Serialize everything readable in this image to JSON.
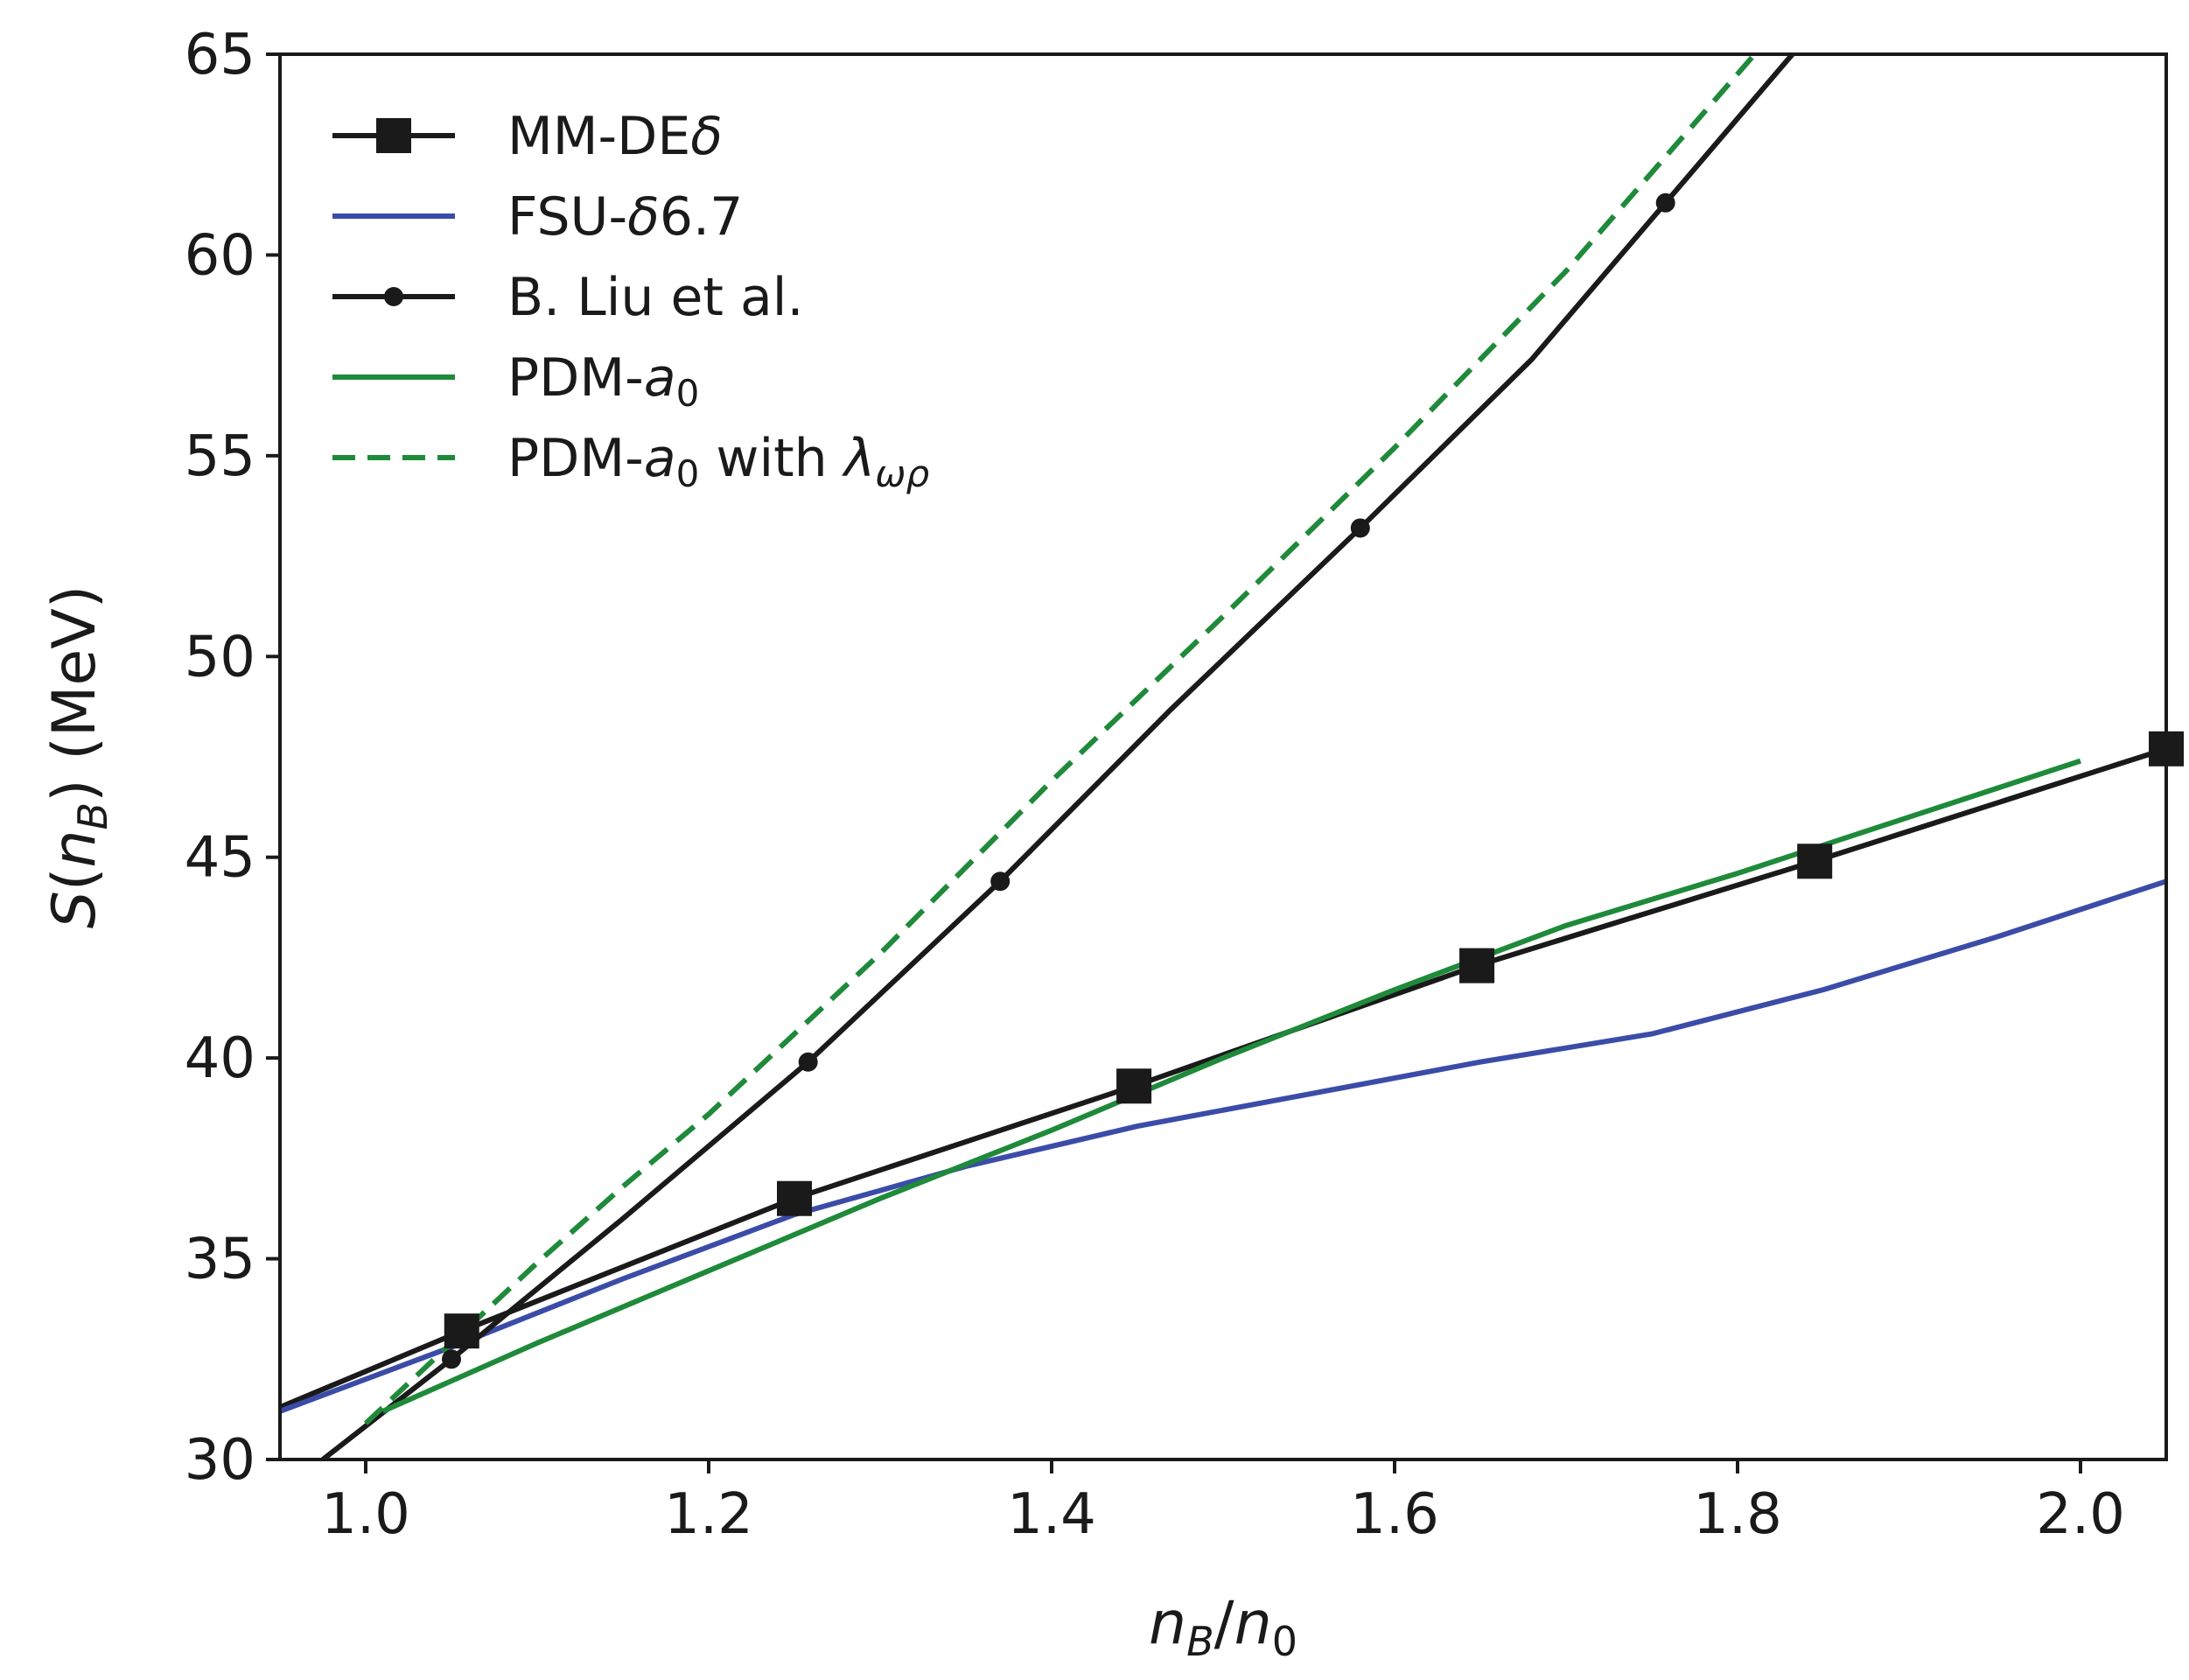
{
  "chart_data": {
    "type": "line",
    "title": "",
    "xlabel": "n_B/n_0",
    "ylabel": "S(n_B) (MeV)",
    "xlim": [
      0.95,
      2.05
    ],
    "ylim": [
      30,
      65
    ],
    "x_ticks": [
      1.0,
      1.2,
      1.4,
      1.6,
      1.8,
      2.0
    ],
    "x_tick_labels": [
      "1.0",
      "1.2",
      "1.4",
      "1.6",
      "1.8",
      "2.0"
    ],
    "y_ticks": [
      30,
      35,
      40,
      45,
      50,
      55,
      60,
      65
    ],
    "y_tick_labels": [
      "30",
      "35",
      "40",
      "45",
      "50",
      "55",
      "60",
      "65"
    ],
    "legend_position": "top-left",
    "series": [
      {
        "name": "MM-DEδ",
        "label_parts": [
          [
            "MM-DE",
            ""
          ],
          [
            "δ",
            "it"
          ]
        ],
        "color": "#1a1a1a",
        "style": "solid",
        "marker": "square",
        "x": [
          0.95,
          1.056,
          1.25,
          1.448,
          1.648,
          1.845,
          2.05
        ],
        "y": [
          31.3,
          33.2,
          36.5,
          39.3,
          42.3,
          44.9,
          47.7
        ],
        "marker_x": [
          1.056,
          1.25,
          1.448,
          1.648,
          1.845,
          2.05
        ],
        "marker_y": [
          33.2,
          36.5,
          39.3,
          42.3,
          44.9,
          47.7
        ]
      },
      {
        "name": "FSU-δ6.7",
        "label_parts": [
          [
            "FSU-",
            ""
          ],
          [
            "δ",
            "it"
          ],
          [
            "6.7",
            ""
          ]
        ],
        "color": "#3b4ca8",
        "style": "solid",
        "marker": "none",
        "x": [
          0.95,
          1.05,
          1.15,
          1.25,
          1.35,
          1.45,
          1.55,
          1.65,
          1.75,
          1.85,
          1.95,
          2.05
        ],
        "y": [
          31.2,
          32.8,
          34.5,
          36.1,
          37.3,
          38.3,
          39.1,
          39.9,
          40.6,
          41.7,
          43.0,
          44.4
        ]
      },
      {
        "name": "B. Liu et al.",
        "label_parts": [
          [
            "B. Liu et al.",
            ""
          ]
        ],
        "color": "#1a1a1a",
        "style": "solid",
        "marker": "dot",
        "x": [
          0.975,
          1.05,
          1.15,
          1.258,
          1.37,
          1.47,
          1.58,
          1.68,
          1.758,
          1.832
        ],
        "y": [
          30.0,
          32.5,
          36.0,
          39.9,
          44.4,
          48.7,
          53.2,
          57.4,
          61.3,
          65.0
        ],
        "marker_x": [
          1.05,
          1.258,
          1.37,
          1.58,
          1.758
        ],
        "marker_y": [
          32.5,
          39.9,
          44.4,
          53.2,
          61.3
        ]
      },
      {
        "name": "PDM-a0",
        "label_parts": [
          [
            "PDM-",
            ""
          ],
          [
            "a",
            "it"
          ],
          [
            "0",
            "sub"
          ]
        ],
        "color": "#1e8a3a",
        "style": "solid",
        "marker": "none",
        "x": [
          1.01,
          1.1,
          1.2,
          1.3,
          1.4,
          1.5,
          1.6,
          1.7,
          1.8,
          1.9,
          2.0
        ],
        "y": [
          31.2,
          32.9,
          34.7,
          36.5,
          38.2,
          40.0,
          41.7,
          43.3,
          44.6,
          46.0,
          47.4
        ]
      },
      {
        "name": "PDM-a0 with λωρ",
        "label_parts": [
          [
            "PDM-",
            ""
          ],
          [
            "a",
            "it"
          ],
          [
            "0",
            "sub"
          ],
          [
            " with ",
            ""
          ],
          [
            "λ",
            "it"
          ],
          [
            "ωρ",
            "itsub"
          ]
        ],
        "color": "#1e8a3a",
        "style": "dashed",
        "marker": "none",
        "x": [
          1.0,
          1.05,
          1.1,
          1.15,
          1.2,
          1.3,
          1.4,
          1.5,
          1.6,
          1.7,
          1.81
        ],
        "y": [
          30.9,
          32.9,
          34.9,
          36.8,
          38.6,
          42.6,
          46.9,
          51.0,
          55.2,
          59.6,
          65.0
        ]
      }
    ]
  }
}
